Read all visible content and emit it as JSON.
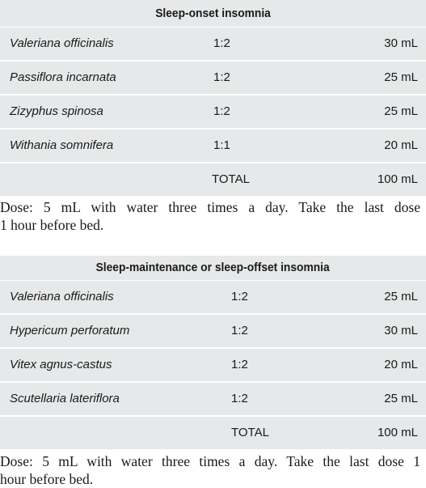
{
  "table1": {
    "title": "Sleep-onset insomnia",
    "rows": [
      {
        "herb": "Valeriana officinalis",
        "ratio": "1:2",
        "amount": "30 mL"
      },
      {
        "herb": "Passiflora incarnata",
        "ratio": "1:2",
        "amount": "25 mL"
      },
      {
        "herb": "Zizyphus spinosa",
        "ratio": "1:2",
        "amount": "25 mL"
      },
      {
        "herb": "Withania somnifera",
        "ratio": "1:1",
        "amount": "20 mL"
      }
    ],
    "total_label": "TOTAL",
    "total_amount": "100 mL"
  },
  "dose1": {
    "line1": "Dose: 5 mL with water three times a day. Take the last dose",
    "line2": "1 hour before bed."
  },
  "table2": {
    "title": "Sleep-maintenance or sleep-offset insomnia",
    "rows": [
      {
        "herb": "Valeriana officinalis",
        "ratio": "1:2",
        "amount": "25 mL"
      },
      {
        "herb": "Hypericum perforatum",
        "ratio": "1:2",
        "amount": "30 mL"
      },
      {
        "herb": "Vitex agnus-castus",
        "ratio": "1:2",
        "amount": "20 mL"
      },
      {
        "herb": "Scutellaria lateriflora",
        "ratio": "1:2",
        "amount": "25 mL"
      }
    ],
    "total_label": "TOTAL",
    "total_amount": "100 mL"
  },
  "dose2": {
    "line1": "Dose: 5 mL with water three times a day. Take the last dose 1",
    "line2": "hour before bed."
  }
}
